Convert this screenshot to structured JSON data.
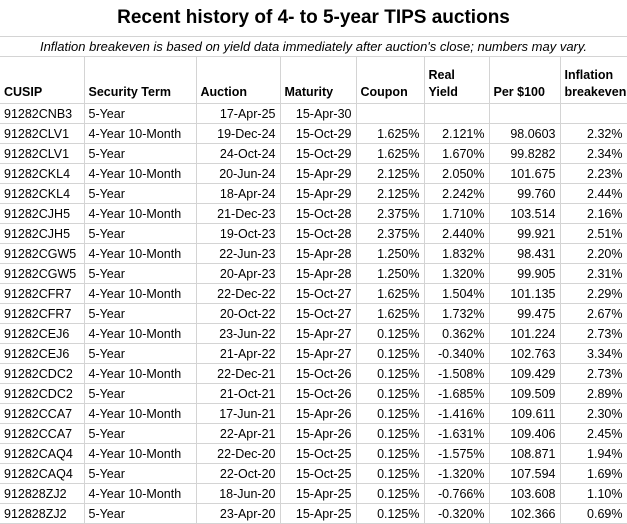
{
  "title": "Recent history of 4- to 5-year TIPS auctions",
  "subtitle": "Inflation breakeven is based on yield data immediately after auction's close; numbers may vary.",
  "colors": {
    "background": "#ffffff",
    "text": "#000000",
    "gridline": "#d4d4d4"
  },
  "table": {
    "columns": [
      {
        "key": "cusip",
        "label": "CUSIP",
        "align": "left"
      },
      {
        "key": "term",
        "label": "Security Term",
        "align": "left"
      },
      {
        "key": "auction",
        "label": "Auction",
        "align": "right"
      },
      {
        "key": "maturity",
        "label": "Maturity",
        "align": "right"
      },
      {
        "key": "coupon",
        "label": "Coupon",
        "align": "right"
      },
      {
        "key": "real_yield",
        "label": "Real\nYield",
        "align": "right"
      },
      {
        "key": "per_100",
        "label": "Per $100",
        "align": "right"
      },
      {
        "key": "breakeven",
        "label": "Inflation\nbreakeven",
        "align": "right"
      }
    ],
    "rows": [
      [
        "91282CNB3",
        "5-Year",
        "17-Apr-25",
        "15-Apr-30",
        "",
        "",
        "",
        ""
      ],
      [
        "91282CLV1",
        "4-Year 10-Month",
        "19-Dec-24",
        "15-Oct-29",
        "1.625%",
        "2.121%",
        "98.0603",
        "2.32%"
      ],
      [
        "91282CLV1",
        "5-Year",
        "24-Oct-24",
        "15-Oct-29",
        "1.625%",
        "1.670%",
        "99.8282",
        "2.34%"
      ],
      [
        "91282CKL4",
        "4-Year 10-Month",
        "20-Jun-24",
        "15-Apr-29",
        "2.125%",
        "2.050%",
        "101.675",
        "2.23%"
      ],
      [
        "91282CKL4",
        "5-Year",
        "18-Apr-24",
        "15-Apr-29",
        "2.125%",
        "2.242%",
        "99.760",
        "2.44%"
      ],
      [
        "91282CJH5",
        "4-Year 10-Month",
        "21-Dec-23",
        "15-Oct-28",
        "2.375%",
        "1.710%",
        "103.514",
        "2.16%"
      ],
      [
        "91282CJH5",
        "5-Year",
        "19-Oct-23",
        "15-Oct-28",
        "2.375%",
        "2.440%",
        "99.921",
        "2.51%"
      ],
      [
        "91282CGW5",
        "4-Year 10-Month",
        "22-Jun-23",
        "15-Apr-28",
        "1.250%",
        "1.832%",
        "98.431",
        "2.20%"
      ],
      [
        "91282CGW5",
        "5-Year",
        "20-Apr-23",
        "15-Apr-28",
        "1.250%",
        "1.320%",
        "99.905",
        "2.31%"
      ],
      [
        "91282CFR7",
        "4-Year 10-Month",
        "22-Dec-22",
        "15-Oct-27",
        "1.625%",
        "1.504%",
        "101.135",
        "2.29%"
      ],
      [
        "91282CFR7",
        "5-Year",
        "20-Oct-22",
        "15-Oct-27",
        "1.625%",
        "1.732%",
        "99.475",
        "2.67%"
      ],
      [
        "91282CEJ6",
        "4-Year 10-Month",
        "23-Jun-22",
        "15-Apr-27",
        "0.125%",
        "0.362%",
        "101.224",
        "2.73%"
      ],
      [
        "91282CEJ6",
        "5-Year",
        "21-Apr-22",
        "15-Apr-27",
        "0.125%",
        "-0.340%",
        "102.763",
        "3.34%"
      ],
      [
        "91282CDC2",
        "4-Year 10-Month",
        "22-Dec-21",
        "15-Oct-26",
        "0.125%",
        "-1.508%",
        "109.429",
        "2.73%"
      ],
      [
        "91282CDC2",
        "5-Year",
        "21-Oct-21",
        "15-Oct-26",
        "0.125%",
        "-1.685%",
        "109.509",
        "2.89%"
      ],
      [
        "91282CCA7",
        "4-Year 10-Month",
        "17-Jun-21",
        "15-Apr-26",
        "0.125%",
        "-1.416%",
        "109.611",
        "2.30%"
      ],
      [
        "91282CCA7",
        "5-Year",
        "22-Apr-21",
        "15-Apr-26",
        "0.125%",
        "-1.631%",
        "109.406",
        "2.45%"
      ],
      [
        "91282CAQ4",
        "4-Year 10-Month",
        "22-Dec-20",
        "15-Oct-25",
        "0.125%",
        "-1.575%",
        "108.871",
        "1.94%"
      ],
      [
        "91282CAQ4",
        "5-Year",
        "22-Oct-20",
        "15-Oct-25",
        "0.125%",
        "-1.320%",
        "107.594",
        "1.69%"
      ],
      [
        "912828ZJ2",
        "4-Year 10-Month",
        "18-Jun-20",
        "15-Apr-25",
        "0.125%",
        "-0.766%",
        "103.608",
        "1.10%"
      ],
      [
        "912828ZJ2",
        "5-Year",
        "23-Apr-20",
        "15-Apr-25",
        "0.125%",
        "-0.320%",
        "102.366",
        "0.69%"
      ]
    ]
  }
}
